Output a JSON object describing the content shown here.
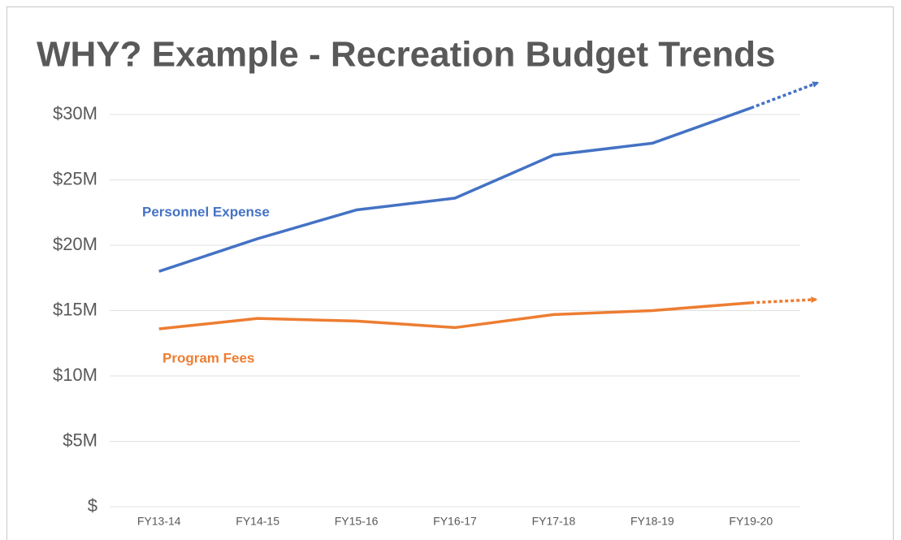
{
  "chart_data": {
    "type": "line",
    "title": "WHY?  Example - Recreation Budget Trends",
    "categories": [
      "FY13-14",
      "FY14-15",
      "FY15-16",
      "FY16-17",
      "FY17-18",
      "FY18-19",
      "FY19-20"
    ],
    "series": [
      {
        "name": "Personnel Expense",
        "color": "#4472c4",
        "values": [
          18.0,
          20.5,
          22.7,
          23.6,
          26.9,
          27.8,
          30.5
        ]
      },
      {
        "name": "Program Fees",
        "color": "#ed7d31",
        "values": [
          13.6,
          14.4,
          14.2,
          13.7,
          14.7,
          15.0,
          15.6
        ]
      }
    ],
    "ylim": [
      0,
      30
    ],
    "yticks": [
      {
        "value": 0,
        "label": "$"
      },
      {
        "value": 5,
        "label": "$5M"
      },
      {
        "value": 10,
        "label": "$10M"
      },
      {
        "value": 15,
        "label": "$15M"
      },
      {
        "value": 20,
        "label": "$20M"
      },
      {
        "value": 25,
        "label": "$25M"
      },
      {
        "value": 30,
        "label": "$30M"
      }
    ],
    "grid": true
  }
}
